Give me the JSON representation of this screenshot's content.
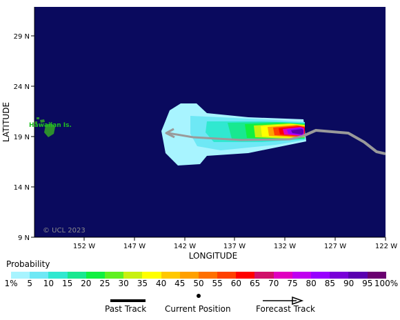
{
  "map": {
    "x_axis_title": "LONGITUDE",
    "y_axis_title": "LATITUDE",
    "longitude_ticks": [
      "152 W",
      "147 W",
      "142 W",
      "137 W",
      "132 W",
      "127 W",
      "122 W"
    ],
    "latitude_ticks": [
      "29 N",
      "24 N",
      "19 N",
      "14 N",
      "9 N"
    ],
    "island_label": "Hawaiian Is.",
    "watermark": "© UCL 2023",
    "colors": {
      "ocean": "#0a0a5e",
      "land": "#2d8f2d",
      "track": "#9a9a9a"
    }
  },
  "legend": {
    "title": "Probability",
    "labels": [
      "1%",
      "5",
      "10",
      "15",
      "20",
      "25",
      "30",
      "35",
      "40",
      "45",
      "50",
      "55",
      "60",
      "65",
      "70",
      "75",
      "80",
      "85",
      "90",
      "95",
      "100%"
    ],
    "colors": [
      "#a8f4ff",
      "#6ee8f5",
      "#30e8d0",
      "#18e890",
      "#10f040",
      "#60f020",
      "#c8f010",
      "#ffff00",
      "#ffc800",
      "#ffa000",
      "#ff7000",
      "#ff4000",
      "#ff0000",
      "#d0106a",
      "#e000c0",
      "#c000f0",
      "#9800ff",
      "#7800d8",
      "#5a00b0",
      "#6a0070"
    ]
  },
  "key": {
    "past_track_label": "Past Track",
    "current_position_label": "Current Position",
    "forecast_track_label": "Forecast Track"
  }
}
